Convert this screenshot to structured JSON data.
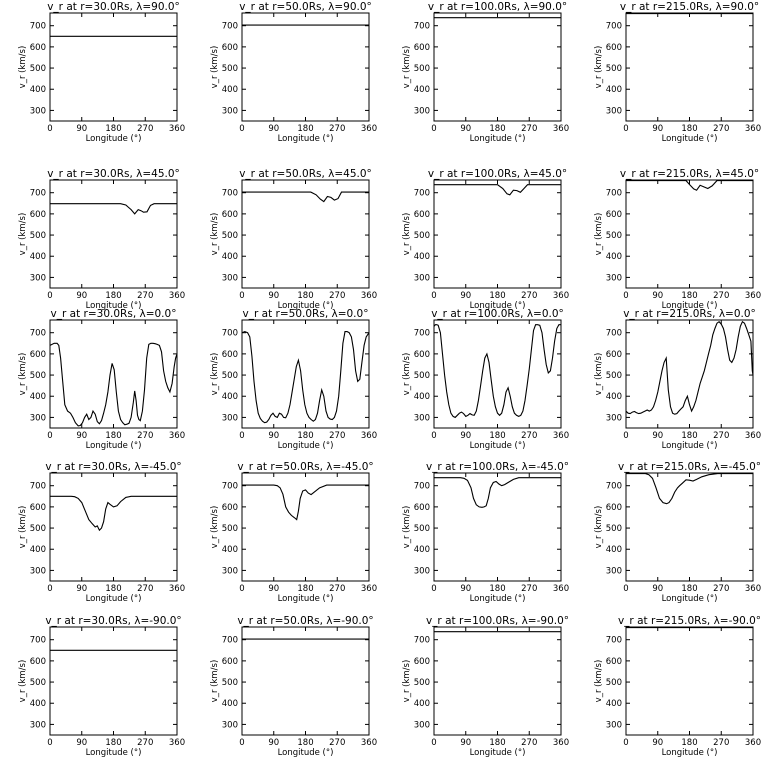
{
  "chart_data": {
    "type": "line",
    "layout": "grid 5 rows x 4 columns",
    "row_latitudes": [
      "90.0",
      "45.0",
      "0.0",
      "-45.0",
      "-90.0"
    ],
    "col_radii": [
      "30.0",
      "50.0",
      "100.0",
      "215.0"
    ],
    "shared": {
      "xlabel": "Longitude (°)",
      "ylabel": "v_r (km/s)",
      "xlim": [
        0,
        360
      ],
      "xticks": [
        0,
        90,
        180,
        270,
        360
      ],
      "yticks": [
        300,
        400,
        500,
        600,
        700
      ],
      "grid": false
    },
    "panels": [
      {
        "title": "v_r at r=30.0Rs, λ=90.0°",
        "ylim": [
          250,
          760
        ],
        "x": [
          0,
          360
        ],
        "y": [
          650,
          650
        ]
      },
      {
        "title": "v_r at r=50.0Rs, λ=90.0°",
        "ylim": [
          250,
          760
        ],
        "x": [
          0,
          360
        ],
        "y": [
          703,
          703
        ]
      },
      {
        "title": "v_r at r=100.0Rs, λ=90.0°",
        "ylim": [
          250,
          760
        ],
        "x": [
          0,
          360
        ],
        "y": [
          738,
          738
        ]
      },
      {
        "title": "v_r at r=215.0Rs, λ=90.0°",
        "ylim": [
          250,
          760
        ],
        "x": [
          0,
          360
        ],
        "y": [
          757,
          757
        ]
      },
      {
        "title": "v_r at r=30.0Rs, λ=45.0°",
        "ylim": [
          250,
          760
        ],
        "x": [
          0,
          200,
          215,
          230,
          240,
          250,
          258,
          265,
          275,
          285,
          295,
          360
        ],
        "y": [
          648,
          648,
          642,
          620,
          600,
          620,
          615,
          608,
          610,
          640,
          648,
          648
        ]
      },
      {
        "title": "v_r at r=50.0Rs, λ=45.0°",
        "ylim": [
          250,
          760
        ],
        "x": [
          0,
          195,
          210,
          222,
          232,
          242,
          252,
          262,
          272,
          282,
          360
        ],
        "y": [
          703,
          703,
          690,
          670,
          658,
          682,
          678,
          665,
          672,
          703,
          703
        ]
      },
      {
        "title": "v_r at r=100.0Rs, λ=45.0°",
        "ylim": [
          250,
          760
        ],
        "x": [
          0,
          180,
          195,
          207,
          215,
          225,
          235,
          245,
          255,
          265,
          360
        ],
        "y": [
          738,
          738,
          720,
          695,
          690,
          712,
          710,
          702,
          720,
          738,
          738
        ]
      },
      {
        "title": "v_r at r=215.0Rs, λ=45.0°",
        "ylim": [
          250,
          760
        ],
        "x": [
          0,
          170,
          182,
          192,
          200,
          210,
          220,
          232,
          244,
          258,
          360
        ],
        "y": [
          757,
          757,
          735,
          718,
          712,
          735,
          728,
          720,
          732,
          757,
          757
        ]
      },
      {
        "title": "v_r at r=30.0Rs, λ=0.0°",
        "ylim": [
          250,
          760
        ],
        "x": [
          0,
          12,
          20,
          25,
          30,
          36,
          42,
          50,
          58,
          65,
          72,
          80,
          86,
          92,
          98,
          104,
          110,
          116,
          122,
          128,
          134,
          140,
          146,
          152,
          158,
          164,
          170,
          176,
          182,
          188,
          194,
          200,
          206,
          212,
          218,
          224,
          230,
          236,
          240,
          244,
          248,
          252,
          256,
          262,
          268,
          274,
          280,
          286,
          292,
          298,
          304,
          310,
          316,
          322,
          328,
          334,
          340,
          346,
          352,
          356,
          360
        ],
        "y": [
          640,
          650,
          650,
          640,
          580,
          470,
          360,
          330,
          320,
          300,
          275,
          260,
          262,
          275,
          300,
          315,
          290,
          300,
          330,
          315,
          280,
          270,
          285,
          320,
          360,
          420,
          500,
          555,
          525,
          420,
          330,
          290,
          275,
          265,
          268,
          272,
          300,
          370,
          425,
          380,
          310,
          290,
          285,
          330,
          430,
          580,
          645,
          650,
          650,
          648,
          645,
          640,
          610,
          520,
          470,
          440,
          420,
          460,
          540,
          580,
          600
        ]
      },
      {
        "title": "v_r at r=50.0Rs, λ=0.0°",
        "ylim": [
          250,
          760
        ],
        "x": [
          0,
          8,
          16,
          22,
          28,
          34,
          40,
          46,
          52,
          58,
          64,
          70,
          76,
          82,
          88,
          94,
          100,
          106,
          112,
          118,
          124,
          130,
          136,
          142,
          148,
          154,
          160,
          166,
          172,
          178,
          184,
          190,
          196,
          202,
          208,
          214,
          220,
          226,
          232,
          238,
          244,
          250,
          256,
          262,
          268,
          274,
          280,
          286,
          292,
          298,
          304,
          310,
          316,
          322,
          328,
          334,
          340,
          346,
          352,
          356,
          360
        ],
        "y": [
          700,
          705,
          700,
          680,
          590,
          470,
          380,
          320,
          295,
          282,
          275,
          278,
          290,
          310,
          320,
          305,
          300,
          320,
          315,
          300,
          298,
          320,
          360,
          420,
          480,
          540,
          570,
          520,
          430,
          360,
          320,
          300,
          290,
          282,
          290,
          320,
          380,
          430,
          400,
          330,
          300,
          292,
          290,
          300,
          330,
          400,
          520,
          650,
          705,
          705,
          700,
          680,
          620,
          520,
          470,
          480,
          560,
          640,
          680,
          690,
          700
        ]
      },
      {
        "title": "v_r at r=100.0Rs, λ=0.0°",
        "ylim": [
          250,
          760
        ],
        "x": [
          0,
          4,
          8,
          12,
          18,
          24,
          30,
          36,
          42,
          48,
          54,
          60,
          66,
          72,
          78,
          84,
          90,
          96,
          102,
          108,
          114,
          120,
          126,
          132,
          138,
          144,
          150,
          156,
          162,
          168,
          174,
          180,
          186,
          192,
          198,
          204,
          210,
          216,
          222,
          228,
          234,
          240,
          246,
          252,
          258,
          264,
          270,
          276,
          282,
          288,
          294,
          300,
          306,
          312,
          318,
          324,
          330,
          336,
          342,
          348,
          354,
          358,
          360
        ],
        "y": [
          730,
          738,
          738,
          735,
          700,
          600,
          500,
          420,
          360,
          320,
          305,
          300,
          310,
          320,
          325,
          318,
          305,
          310,
          318,
          312,
          310,
          330,
          380,
          450,
          520,
          580,
          600,
          560,
          480,
          400,
          350,
          320,
          310,
          320,
          360,
          420,
          440,
          400,
          350,
          320,
          310,
          305,
          310,
          330,
          380,
          450,
          530,
          620,
          710,
          738,
          738,
          735,
          700,
          620,
          550,
          510,
          520,
          580,
          660,
          720,
          738,
          738,
          738
        ]
      },
      {
        "title": "v_r at r=215.0Rs, λ=0.0°",
        "ylim": [
          250,
          760
        ],
        "x": [
          0,
          6,
          12,
          18,
          24,
          30,
          36,
          42,
          48,
          54,
          60,
          66,
          72,
          78,
          84,
          90,
          96,
          102,
          108,
          114,
          120,
          126,
          132,
          138,
          144,
          150,
          156,
          162,
          168,
          174,
          180,
          186,
          192,
          198,
          204,
          210,
          216,
          222,
          228,
          234,
          240,
          246,
          252,
          258,
          264,
          270,
          276,
          282,
          288,
          294,
          300,
          306,
          312,
          318,
          324,
          330,
          336,
          342,
          348,
          354,
          358,
          360
        ],
        "y": [
          330,
          320,
          318,
          325,
          328,
          322,
          318,
          320,
          325,
          330,
          335,
          330,
          335,
          350,
          380,
          420,
          470,
          520,
          560,
          580,
          430,
          350,
          320,
          315,
          318,
          330,
          340,
          350,
          380,
          400,
          360,
          330,
          350,
          380,
          420,
          460,
          490,
          520,
          560,
          600,
          640,
          690,
          720,
          745,
          752,
          740,
          720,
          680,
          620,
          570,
          560,
          580,
          620,
          680,
          730,
          752,
          745,
          720,
          690,
          660,
          520,
          500
        ]
      },
      {
        "title": "v_r at r=30.0Rs, λ=-45.0°",
        "ylim": [
          250,
          760
        ],
        "x": [
          0,
          60,
          70,
          80,
          90,
          100,
          110,
          120,
          128,
          134,
          140,
          146,
          152,
          158,
          164,
          170,
          180,
          190,
          200,
          215,
          230,
          360
        ],
        "y": [
          650,
          650,
          648,
          640,
          620,
          580,
          540,
          520,
          505,
          510,
          490,
          500,
          530,
          590,
          620,
          612,
          600,
          605,
          625,
          645,
          650,
          650
        ]
      },
      {
        "title": "v_r at r=50.0Rs, λ=-45.0°",
        "ylim": [
          250,
          760
        ],
        "x": [
          0,
          90,
          100,
          108,
          116,
          124,
          132,
          140,
          148,
          155,
          160,
          165,
          172,
          180,
          188,
          196,
          205,
          220,
          240,
          360
        ],
        "y": [
          703,
          703,
          700,
          690,
          660,
          600,
          575,
          560,
          550,
          540,
          580,
          640,
          675,
          680,
          665,
          658,
          670,
          690,
          703,
          703
        ]
      },
      {
        "title": "v_r at r=100.0Rs, λ=-45.0°",
        "ylim": [
          250,
          760
        ],
        "x": [
          0,
          75,
          85,
          95,
          105,
          112,
          120,
          128,
          136,
          142,
          148,
          154,
          160,
          168,
          176,
          184,
          192,
          200,
          210,
          225,
          240,
          360
        ],
        "y": [
          738,
          738,
          735,
          725,
          690,
          640,
          610,
          600,
          598,
          600,
          605,
          640,
          690,
          715,
          720,
          708,
          700,
          705,
          715,
          730,
          738,
          738
        ]
      },
      {
        "title": "v_r at r=215.0Rs, λ=-45.0°",
        "ylim": [
          250,
          760
        ],
        "x": [
          0,
          55,
          65,
          75,
          85,
          95,
          105,
          115,
          122,
          130,
          138,
          146,
          152,
          160,
          170,
          180,
          190,
          200,
          215,
          235,
          260,
          360
        ],
        "y": [
          757,
          757,
          752,
          735,
          690,
          640,
          620,
          615,
          620,
          640,
          670,
          690,
          700,
          712,
          728,
          726,
          722,
          730,
          742,
          752,
          757,
          757
        ]
      },
      {
        "title": "v_r at r=30.0Rs, λ=-90.0°",
        "ylim": [
          250,
          760
        ],
        "x": [
          0,
          360
        ],
        "y": [
          650,
          650
        ]
      },
      {
        "title": "v_r at r=50.0Rs, λ=-90.0°",
        "ylim": [
          250,
          760
        ],
        "x": [
          0,
          360
        ],
        "y": [
          703,
          703
        ]
      },
      {
        "title": "v_r at r=100.0Rs, λ=-90.0°",
        "ylim": [
          250,
          760
        ],
        "x": [
          0,
          360
        ],
        "y": [
          738,
          738
        ]
      },
      {
        "title": "v_r at r=215.0Rs, λ=-90.0°",
        "ylim": [
          250,
          760
        ],
        "x": [
          0,
          360
        ],
        "y": [
          757,
          757
        ]
      }
    ]
  }
}
